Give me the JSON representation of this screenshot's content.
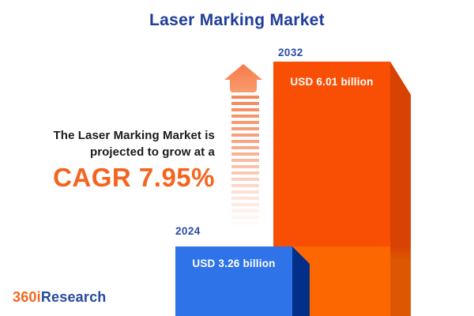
{
  "title": "Laser Marking Market",
  "blurb": {
    "line1": "The Laser Marking Market is",
    "line2": "projected to grow at a",
    "cagr_text": "CAGR 7.95%"
  },
  "logo": {
    "prefix": "360i",
    "suffix": "Research"
  },
  "chart_data": {
    "type": "bar",
    "title": "Laser Marking Market",
    "categories": [
      "2024",
      "2032"
    ],
    "values": [
      3.26,
      6.01
    ],
    "unit": "USD billion",
    "value_labels": [
      "USD 3.26 billion",
      "USD 6.01 billion"
    ],
    "cagr_percent": 7.95,
    "legend_position": "none",
    "grid": false,
    "colors": {
      "bar_2024_face": "#2e74e8",
      "bar_2024_side": "#032f88",
      "bar_2032_face_top": "#f94f05",
      "bar_2032_face_bottom": "#fd6702",
      "bar_2032_side": "#d84303",
      "accent_orange": "#f4641f",
      "label_blue": "#2b4ba8",
      "title_blue": "#1f3d99"
    }
  }
}
